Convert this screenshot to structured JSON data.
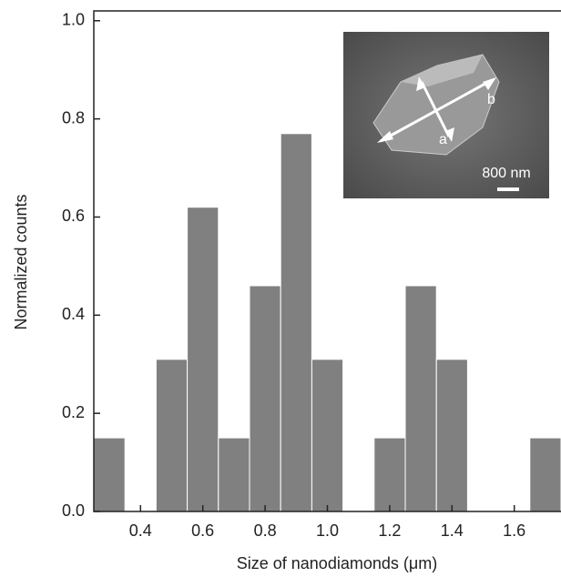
{
  "chart_data": {
    "type": "histogram",
    "x_label": "Size of nanodiamonds (μm)",
    "y_label": "Normalized counts",
    "bins": [
      0.25,
      0.35,
      0.45,
      0.55,
      0.65,
      0.75,
      0.85,
      0.95,
      1.05,
      1.15,
      1.25,
      1.35,
      1.45,
      1.55,
      1.65,
      1.75
    ],
    "values": [
      0.15,
      0,
      0.31,
      0.62,
      0.15,
      0.46,
      0.77,
      0.31,
      0,
      0.15,
      0.46,
      0.31,
      0,
      0,
      0.15
    ],
    "color": "#808080",
    "xlim": [
      0.25,
      1.75
    ],
    "ylim": [
      0,
      1.02
    ],
    "xticks": [
      0.4,
      0.6,
      0.8,
      {
        "value": 1,
        "label": "1.0"
      },
      1.2,
      1.4,
      1.6
    ],
    "yticks": [
      {
        "value": 0,
        "label": "0.0"
      },
      0.2,
      0.4,
      0.6,
      0.8,
      {
        "value": 1,
        "label": "1.0"
      }
    ],
    "inset": {
      "label_a": "a",
      "label_b": "b",
      "scale_bar": "800 nm"
    }
  }
}
